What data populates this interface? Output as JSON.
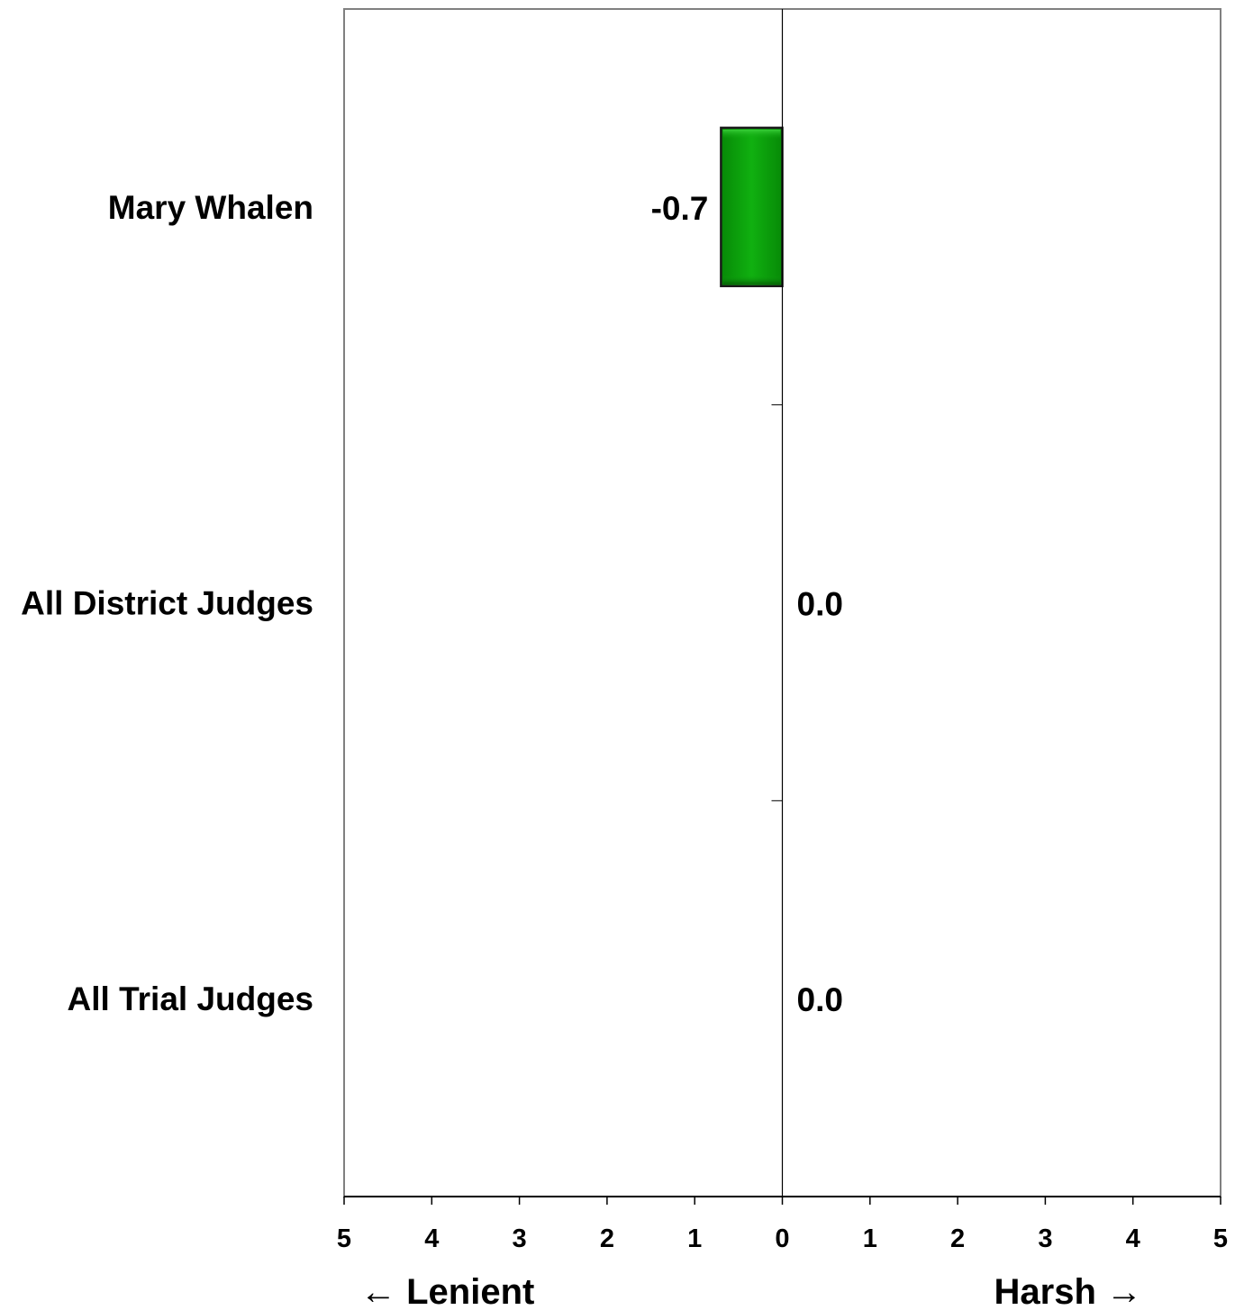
{
  "chart_data": {
    "type": "bar",
    "orientation": "horizontal",
    "categories": [
      "Mary Whalen",
      "All District Judges",
      "All Trial Judges"
    ],
    "values": [
      -0.7,
      0.0,
      0.0
    ],
    "value_labels": [
      "-0.7",
      "0.0",
      "0.0"
    ],
    "xlim": [
      -5,
      5
    ],
    "x_ticks": [
      -5,
      -4,
      -3,
      -2,
      -1,
      0,
      1,
      2,
      3,
      4,
      5
    ],
    "x_tick_labels": [
      "5",
      "4",
      "3",
      "2",
      "1",
      "0",
      "1",
      "2",
      "3",
      "4",
      "5"
    ],
    "left_direction_label": "← Lenient",
    "right_direction_label": "Harsh →",
    "bar_color": "#0a9a0a",
    "grid": false
  }
}
